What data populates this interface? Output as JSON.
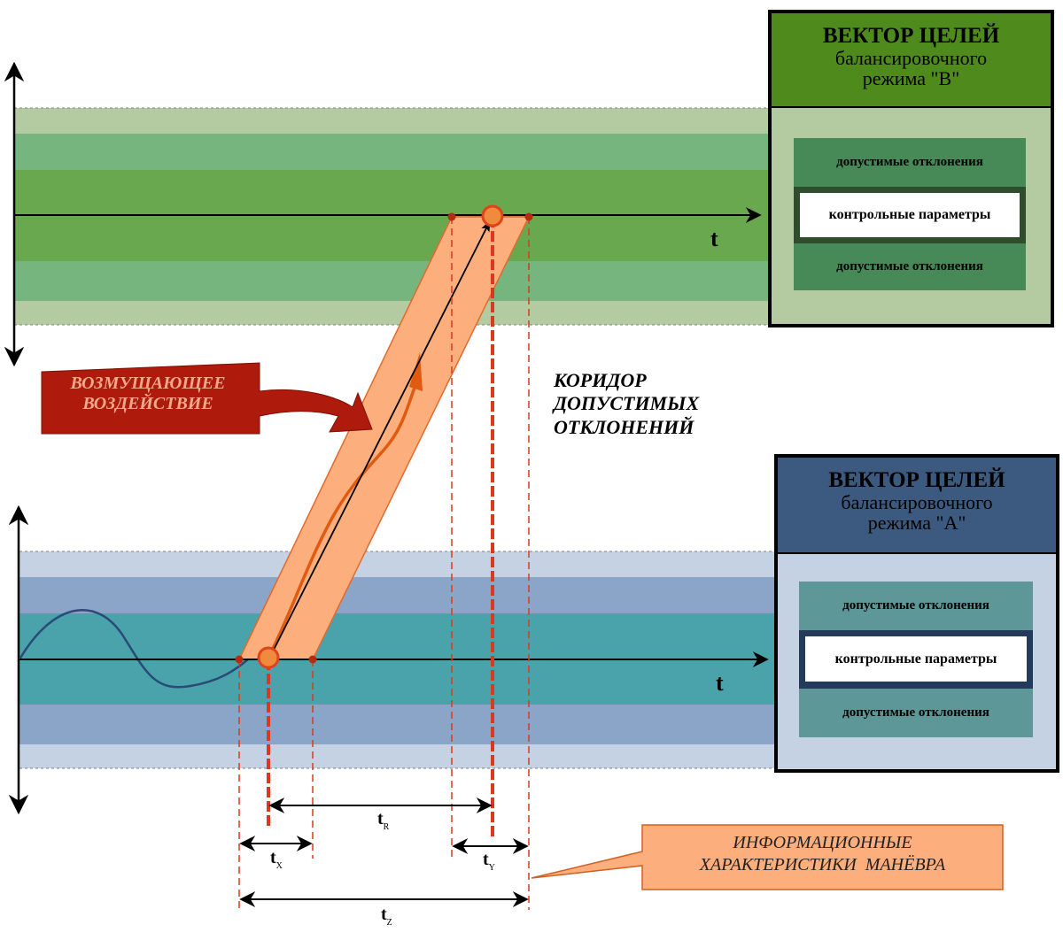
{
  "panel_b": {
    "title_line1": "ВЕКТОР ЦЕЛЕЙ",
    "title_line2": "балансировочного",
    "title_line3": "режима \"В\"",
    "row_top": "допустимые отклонения",
    "row_middle": "контрольные параметры",
    "row_bottom": "допустимые отклонения",
    "header_color": "#4f8a1d",
    "body_color": "#b4caa0"
  },
  "panel_a": {
    "title_line1": "ВЕКТОР ЦЕЛЕЙ",
    "title_line2": "балансировочного",
    "title_line3": "режима \"А\"",
    "row_top": "допустимые отклонения",
    "row_middle": "контрольные параметры",
    "row_bottom": "допустимые отклонения",
    "header_color": "#3c5a80",
    "body_color": "#c5d2e3"
  },
  "axis_b_label": "t",
  "axis_a_label": "t",
  "disturbance_label_line1": "ВОЗМУЩАЮЩЕЕ",
  "disturbance_label_line2": "ВОЗДЕЙСТВИЕ",
  "corridor_label_line1": "КОРИДОР",
  "corridor_label_line2": "ДОПУСТИМЫХ",
  "corridor_label_line3": "ОТКЛОНЕНИЙ",
  "info_label_line1": "ИНФОРМАЦИОННЫЕ",
  "info_label_line2": "ХАРАКТЕРИСТИКИ  МАНЁВРА",
  "time_intervals": {
    "tr": {
      "main": "t",
      "sub": "R"
    },
    "tx": {
      "main": "t",
      "sub": "X"
    },
    "ty": {
      "main": "t",
      "sub": "Y"
    },
    "tz": {
      "main": "t",
      "sub": "Z"
    }
  },
  "colors": {
    "green_outer": "#b4caa0",
    "green_mid": "#76b57e",
    "green_core": "#6aa84f",
    "blue_outer": "#c5d2e3",
    "blue_mid": "#8ba5c8",
    "blue_core": "#4aa3ab",
    "corridor_fill": "#fcae7d",
    "corridor_stroke": "#e26a2c",
    "disturbance_arrow": "#ae1a0c",
    "dashed_red": "#d93a1f"
  }
}
